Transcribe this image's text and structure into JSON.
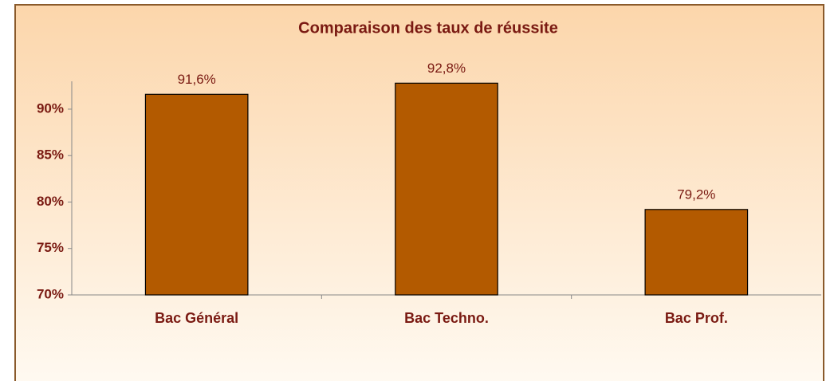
{
  "chart_data": {
    "type": "bar",
    "title": "Comparaison des taux de réussite",
    "categories": [
      "Bac Général",
      "Bac Techno.",
      "Bac Prof."
    ],
    "values": [
      91.6,
      92.8,
      79.2
    ],
    "value_labels": [
      "91,6%",
      "92,8%",
      "79,2%"
    ],
    "color": "#b35a00",
    "ylim": [
      70,
      93
    ],
    "yticks": [
      {
        "value": 70,
        "label": "70%"
      },
      {
        "value": 75,
        "label": "75%"
      },
      {
        "value": 80,
        "label": "80%"
      },
      {
        "value": 85,
        "label": "85%"
      },
      {
        "value": 90,
        "label": "90%"
      }
    ]
  }
}
